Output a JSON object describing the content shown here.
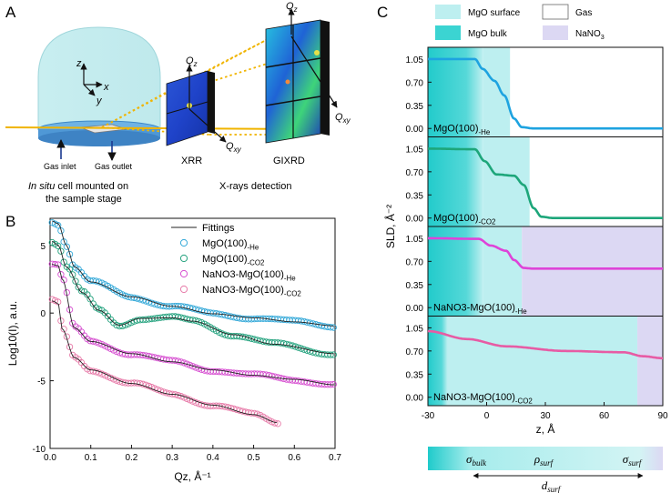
{
  "panels": {
    "a": "A",
    "b": "B",
    "c": "C"
  },
  "panel_a": {
    "axis_z": "z",
    "axis_x": "x",
    "axis_y": "y",
    "gas_inlet": "Gas inlet",
    "gas_outlet": "Gas outlet",
    "cell_caption_1_italic": "In situ",
    "cell_caption_1_rest": " cell mounted on",
    "cell_caption_2": "the sample stage",
    "xrr_label": "XRR",
    "gixrd_label": "GIXRD",
    "detection_caption": "X-rays detection",
    "qz": "Q",
    "qz_sub": "z",
    "qxy": "Q",
    "qxy_sub": "xy"
  },
  "chart_data": [
    {
      "id": "B",
      "type": "scatter",
      "xlabel": "Qz, Å⁻¹",
      "ylabel": "Log10(I), a.u.",
      "xlim": [
        0.0,
        0.7
      ],
      "ylim": [
        -10,
        7
      ],
      "xticks": [
        "0.0",
        "0.1",
        "0.2",
        "0.3",
        "0.4",
        "0.5",
        "0.6",
        "0.7"
      ],
      "yticks": [
        "5",
        "0",
        "-5",
        "-10"
      ],
      "legend_fit": "Fittings",
      "series": [
        {
          "name": "MgO(100)-He",
          "base": "MgO(100)",
          "sub": "-He",
          "color": "#33a8d8",
          "points": [
            [
              0.005,
              6.8
            ],
            [
              0.02,
              6.6
            ],
            [
              0.04,
              5.0
            ],
            [
              0.06,
              3.4
            ],
            [
              0.1,
              2.3
            ],
            [
              0.2,
              1.2
            ],
            [
              0.3,
              0.5
            ],
            [
              0.4,
              -0.05
            ],
            [
              0.5,
              -0.35
            ],
            [
              0.6,
              -0.65
            ],
            [
              0.7,
              -0.95
            ]
          ]
        },
        {
          "name": "MgO(100)-CO2",
          "base": "MgO(100)",
          "sub": "-CO2",
          "color": "#24a27e",
          "points": [
            [
              0.005,
              5.3
            ],
            [
              0.02,
              5.0
            ],
            [
              0.04,
              3.4
            ],
            [
              0.08,
              1.5
            ],
            [
              0.12,
              0.2
            ],
            [
              0.17,
              -0.9
            ],
            [
              0.22,
              -0.4
            ],
            [
              0.3,
              -0.35
            ],
            [
              0.35,
              -0.6
            ],
            [
              0.45,
              -1.6
            ],
            [
              0.55,
              -2.3
            ],
            [
              0.7,
              -3.0
            ]
          ]
        },
        {
          "name": "NaNO3-MgO(100)-He",
          "base": "NaNO3-MgO(100)",
          "sub": "-He",
          "color": "#d64fd0",
          "points": [
            [
              0.005,
              3.6
            ],
            [
              0.02,
              3.5
            ],
            [
              0.03,
              2.5
            ],
            [
              0.06,
              -1.1
            ],
            [
              0.1,
              -2.1
            ],
            [
              0.2,
              -3.0
            ],
            [
              0.3,
              -3.6
            ],
            [
              0.4,
              -4.2
            ],
            [
              0.5,
              -4.6
            ],
            [
              0.6,
              -4.9
            ],
            [
              0.7,
              -5.3
            ]
          ]
        },
        {
          "name": "NaNO3-MgO(100)-CO2",
          "base": "NaNO3-MgO(100)",
          "sub": "-CO2",
          "color": "#e77aa8",
          "points": [
            [
              0.005,
              0.9
            ],
            [
              0.02,
              0.7
            ],
            [
              0.03,
              -1.2
            ],
            [
              0.06,
              -3.3
            ],
            [
              0.1,
              -4.2
            ],
            [
              0.2,
              -5.2
            ],
            [
              0.3,
              -6.0
            ],
            [
              0.4,
              -6.8
            ],
            [
              0.5,
              -7.5
            ],
            [
              0.56,
              -8.1
            ]
          ]
        }
      ]
    },
    {
      "id": "C",
      "type": "line",
      "xlabel": "z, Å",
      "ylabel": "SLD, Å⁻²",
      "xlim": [
        -30,
        90
      ],
      "xticks": [
        "-30",
        "0",
        "30",
        "60",
        "90"
      ],
      "ylim": [
        -0.1,
        1.2
      ],
      "yticks": [
        "1.05",
        "0.70",
        "0.35",
        "0.00"
      ],
      "legend": [
        {
          "label": "MgO surface",
          "color": "#bdeff0"
        },
        {
          "label": "Gas",
          "color": "#ffffff"
        },
        {
          "label": "MgO bulk",
          "color": "#3bd4d2"
        },
        {
          "label": "NaNO3",
          "base": "NaNO",
          "sub": "3",
          "color": "#dcd8f3"
        }
      ],
      "subplots": [
        {
          "base": "MgO(100)",
          "sub": "-He",
          "color": "#1ea3e0",
          "bulk_to": -2,
          "surf_to": 12,
          "right": "gas",
          "curve": [
            [
              -30,
              1.05
            ],
            [
              -6,
              1.05
            ],
            [
              -2,
              0.9
            ],
            [
              4,
              0.72
            ],
            [
              9,
              0.5
            ],
            [
              14,
              0.15
            ],
            [
              18,
              0.02
            ],
            [
              24,
              0
            ],
            [
              90,
              0
            ]
          ]
        },
        {
          "base": "MgO(100)",
          "sub": "-CO2",
          "color": "#1da67a",
          "bulk_to": -2,
          "surf_to": 22,
          "right": "gas",
          "curve": [
            [
              -30,
              1.05
            ],
            [
              -6,
              1.04
            ],
            [
              -1,
              0.86
            ],
            [
              5,
              0.66
            ],
            [
              14,
              0.64
            ],
            [
              19,
              0.5
            ],
            [
              24,
              0.15
            ],
            [
              28,
              0.02
            ],
            [
              34,
              0
            ],
            [
              90,
              0
            ]
          ]
        },
        {
          "base": "NaNO3-MgO(100)",
          "sub": "-He",
          "color": "#de43d8",
          "bulk_to": -2,
          "surf_to": 18,
          "right": "nano3",
          "curve": [
            [
              -30,
              1.05
            ],
            [
              -4,
              1.04
            ],
            [
              2,
              0.94
            ],
            [
              10,
              0.86
            ],
            [
              14,
              0.72
            ],
            [
              19,
              0.6
            ],
            [
              24,
              0.59
            ],
            [
              90,
              0.59
            ]
          ]
        },
        {
          "base": "NaNO3-MgO(100)",
          "sub": "-CO2",
          "color": "#e75ba4",
          "bulk_to": -20,
          "surf_to": 77,
          "right": "nano3",
          "curve": [
            [
              -30,
              1.0
            ],
            [
              -10,
              0.88
            ],
            [
              10,
              0.77
            ],
            [
              40,
              0.7
            ],
            [
              70,
              0.68
            ],
            [
              80,
              0.62
            ],
            [
              90,
              0.59
            ]
          ]
        }
      ],
      "bottom_bar": {
        "sigma_bulk": "σ",
        "sigma_bulk_sub": "bulk",
        "rho": "ρ",
        "rho_sub": "surf",
        "sigma_surf": "σ",
        "sigma_surf_sub": "surf",
        "d": "d",
        "d_sub": "surf"
      }
    }
  ]
}
